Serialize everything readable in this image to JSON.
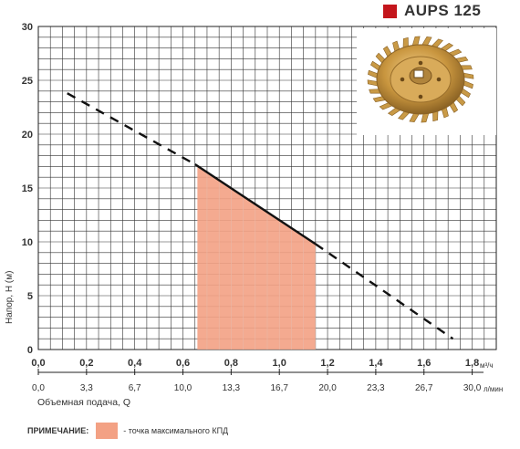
{
  "header": {
    "model": "AUPS 125",
    "accent_color": "#c4161c"
  },
  "chart_data": {
    "type": "line",
    "title": "AUPS 125",
    "ylabel": "Напор, Н (м)",
    "xlabel": "Объемная подача, Q",
    "x_unit_top": "м³/ч",
    "x_unit_bottom": "л/мин",
    "xlim": [
      0,
      1.9
    ],
    "ylim": [
      0,
      30
    ],
    "grid": true,
    "y_ticks": [
      0,
      5,
      10,
      15,
      20,
      25,
      30
    ],
    "x_ticks_m3h": [
      0.0,
      0.2,
      0.4,
      0.6,
      0.8,
      1.0,
      1.2,
      1.4,
      1.6,
      1.8
    ],
    "x_tick_labels_m3h": [
      "0,0",
      "0,2",
      "0,4",
      "0,6",
      "0,8",
      "1,0",
      "1,2",
      "1,4",
      "1,6",
      "1,8"
    ],
    "x_ticks_lmin_pos_m3h": [
      0.0,
      0.2,
      0.4,
      0.6,
      0.8,
      1.0,
      1.2,
      1.4,
      1.6,
      1.8
    ],
    "x_tick_labels_lmin": [
      "0,0",
      "3,3",
      "6,7",
      "10,0",
      "13,3",
      "16,7",
      "20,0",
      "23,3",
      "26,7",
      "30,0"
    ],
    "series": [
      {
        "style": "dashed",
        "x": [
          0.12,
          0.65
        ],
        "y": [
          23.8,
          17.2
        ]
      },
      {
        "style": "solid",
        "x": [
          0.65,
          1.15
        ],
        "y": [
          17.2,
          9.8
        ]
      },
      {
        "style": "dashed",
        "x": [
          1.15,
          1.72
        ],
        "y": [
          9.8,
          1.0
        ]
      }
    ],
    "max_efficiency_band": {
      "x_start": 0.66,
      "x_end": 1.15,
      "color": "#f3a184"
    }
  },
  "image": {
    "icon": "impeller-photo"
  },
  "note": {
    "label": "ПРИМЕЧАНИЕ:",
    "text": "- точка максимального КПД",
    "swatch_color": "#f3a184"
  }
}
